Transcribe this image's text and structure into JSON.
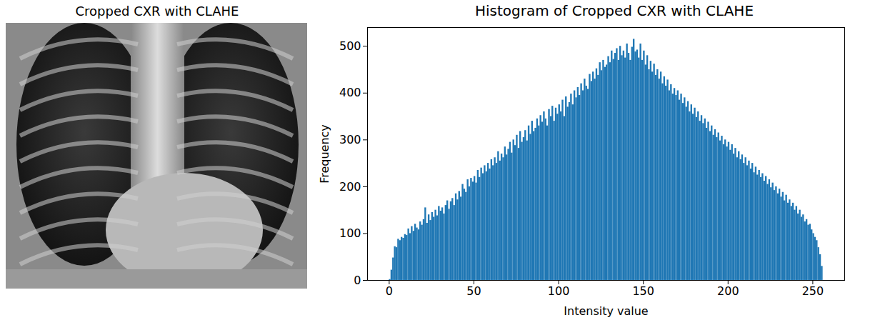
{
  "chart_data": [
    {
      "type": "image",
      "title": "Cropped CXR with CLAHE"
    },
    {
      "type": "histogram",
      "title": "Histogram of Cropped CXR with CLAHE",
      "x_label": "Intensity value",
      "y_label": "Frequency",
      "color": "#1f77b4",
      "xlim": [
        -12.8,
        268.8
      ],
      "xticks": [
        0,
        50,
        100,
        150,
        200,
        250
      ],
      "ylim": [
        0,
        540
      ],
      "yticks": [
        0,
        100,
        200,
        300,
        400,
        500
      ],
      "grid": false,
      "bins": [
        0,
        1,
        2,
        3,
        4,
        5,
        6,
        7,
        8,
        9,
        10,
        11,
        12,
        13,
        14,
        15,
        16,
        17,
        18,
        19,
        20,
        21,
        22,
        23,
        24,
        25,
        26,
        27,
        28,
        29,
        30,
        31,
        32,
        33,
        34,
        35,
        36,
        37,
        38,
        39,
        40,
        41,
        42,
        43,
        44,
        45,
        46,
        47,
        48,
        49,
        50,
        51,
        52,
        53,
        54,
        55,
        56,
        57,
        58,
        59,
        60,
        61,
        62,
        63,
        64,
        65,
        66,
        67,
        68,
        69,
        70,
        71,
        72,
        73,
        74,
        75,
        76,
        77,
        78,
        79,
        80,
        81,
        82,
        83,
        84,
        85,
        86,
        87,
        88,
        89,
        90,
        91,
        92,
        93,
        94,
        95,
        96,
        97,
        98,
        99,
        100,
        101,
        102,
        103,
        104,
        105,
        106,
        107,
        108,
        109,
        110,
        111,
        112,
        113,
        114,
        115,
        116,
        117,
        118,
        119,
        120,
        121,
        122,
        123,
        124,
        125,
        126,
        127,
        128,
        129,
        130,
        131,
        132,
        133,
        134,
        135,
        136,
        137,
        138,
        139,
        140,
        141,
        142,
        143,
        144,
        145,
        146,
        147,
        148,
        149,
        150,
        151,
        152,
        153,
        154,
        155,
        156,
        157,
        158,
        159,
        160,
        161,
        162,
        163,
        164,
        165,
        166,
        167,
        168,
        169,
        170,
        171,
        172,
        173,
        174,
        175,
        176,
        177,
        178,
        179,
        180,
        181,
        182,
        183,
        184,
        185,
        186,
        187,
        188,
        189,
        190,
        191,
        192,
        193,
        194,
        195,
        196,
        197,
        198,
        199,
        200,
        201,
        202,
        203,
        204,
        205,
        206,
        207,
        208,
        209,
        210,
        211,
        212,
        213,
        214,
        215,
        216,
        217,
        218,
        219,
        220,
        221,
        222,
        223,
        224,
        225,
        226,
        227,
        228,
        229,
        230,
        231,
        232,
        233,
        234,
        235,
        236,
        237,
        238,
        239,
        240,
        241,
        242,
        243,
        244,
        245,
        246,
        247,
        248,
        249,
        250,
        251,
        252,
        253,
        254,
        255,
        256
      ],
      "values": [
        2,
        22,
        48,
        72,
        70,
        88,
        85,
        92,
        90,
        98,
        96,
        110,
        100,
        115,
        105,
        120,
        112,
        108,
        125,
        118,
        130,
        155,
        122,
        140,
        128,
        145,
        135,
        150,
        138,
        158,
        148,
        155,
        142,
        160,
        170,
        152,
        168,
        175,
        160,
        185,
        172,
        190,
        178,
        205,
        195,
        188,
        215,
        200,
        218,
        210,
        222,
        208,
        235,
        220,
        240,
        228,
        245,
        232,
        250,
        238,
        258,
        245,
        262,
        250,
        275,
        255,
        270,
        262,
        285,
        268,
        280,
        295,
        272,
        300,
        288,
        310,
        282,
        318,
        295,
        305,
        320,
        298,
        330,
        312,
        340,
        318,
        325,
        345,
        330,
        352,
        338,
        360,
        345,
        330,
        365,
        350,
        372,
        340,
        368,
        355,
        375,
        360,
        385,
        350,
        392,
        370,
        380,
        398,
        375,
        405,
        390,
        412,
        395,
        420,
        405,
        430,
        415,
        408,
        440,
        425,
        445,
        430,
        452,
        438,
        465,
        448,
        470,
        455,
        460,
        478,
        465,
        490,
        472,
        485,
        495,
        470,
        500,
        480,
        490,
        475,
        505,
        485,
        470,
        498,
        515,
        488,
        492,
        475,
        505,
        470,
        490,
        460,
        480,
        450,
        468,
        445,
        462,
        438,
        450,
        430,
        445,
        420,
        435,
        415,
        428,
        405,
        418,
        398,
        410,
        395,
        405,
        385,
        398,
        378,
        390,
        370,
        382,
        360,
        375,
        355,
        368,
        348,
        360,
        340,
        352,
        335,
        345,
        325,
        338,
        318,
        330,
        310,
        322,
        305,
        315,
        298,
        308,
        290,
        300,
        285,
        295,
        278,
        290,
        270,
        282,
        262,
        275,
        258,
        268,
        250,
        262,
        245,
        255,
        238,
        250,
        230,
        242,
        225,
        235,
        220,
        228,
        212,
        222,
        205,
        215,
        198,
        208,
        192,
        200,
        185,
        195,
        178,
        188,
        170,
        182,
        165,
        172,
        158,
        165,
        150,
        158,
        142,
        150,
        135,
        140,
        125,
        130,
        118,
        120,
        108,
        100,
        92,
        85,
        70,
        55,
        30
      ]
    }
  ]
}
